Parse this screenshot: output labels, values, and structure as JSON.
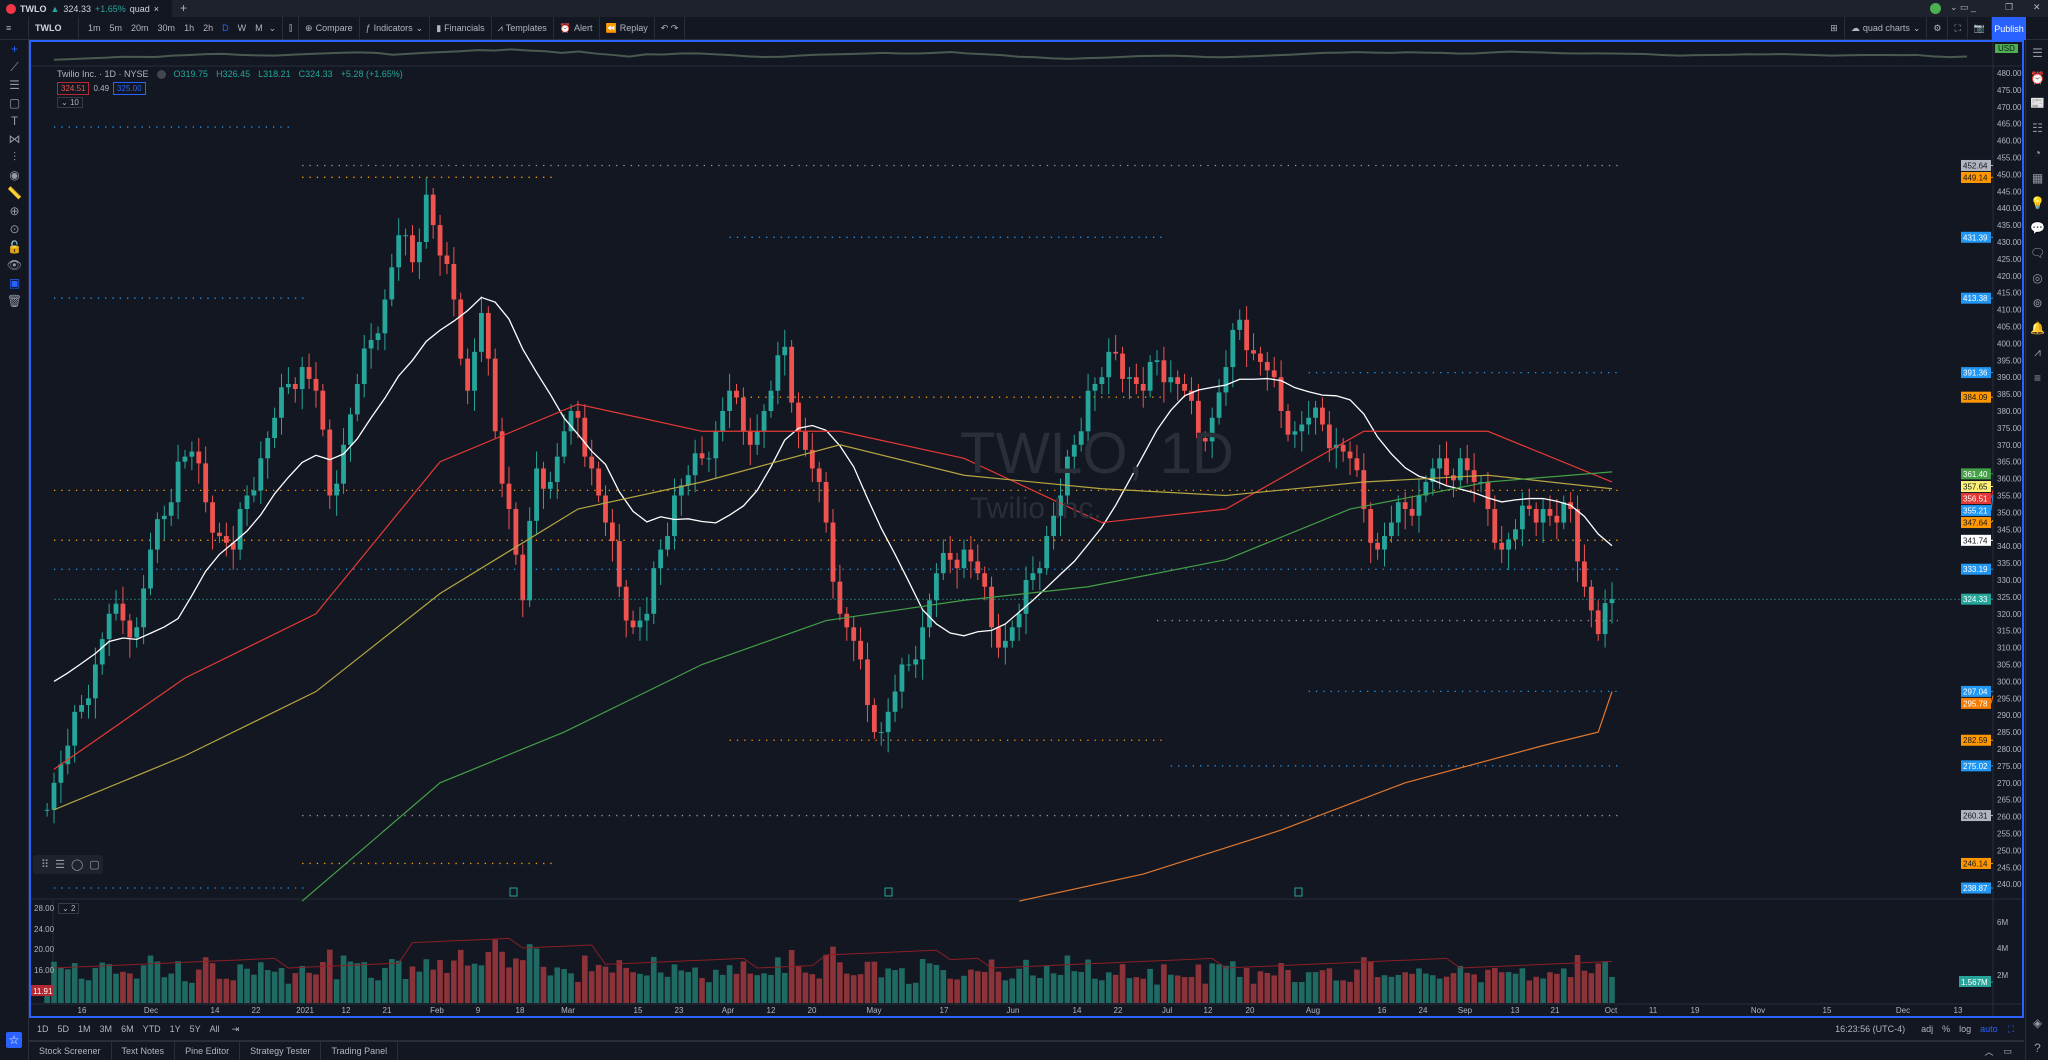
{
  "tab": {
    "symbol": "TWLO",
    "arrow": "▲",
    "price": "324.33",
    "change": "+1.65%",
    "layout": "quad",
    "close": "×",
    "new": "+"
  },
  "toolbar": {
    "symbol": "TWLO",
    "intervals": [
      "1m",
      "5m",
      "20m",
      "30m",
      "1h",
      "2h",
      "D",
      "W",
      "M"
    ],
    "active_interval": "D",
    "compare": "Compare",
    "indicators": "Indicators",
    "financials": "Financials",
    "templates": "Templates",
    "alert": "Alert",
    "replay": "Replay",
    "layout_name": "quad charts",
    "publish": "Publish"
  },
  "legend": {
    "title": "Twilio Inc. · 1D · NYSE",
    "open": "O319.75",
    "high": "H326.45",
    "low": "L318.21",
    "close": "C324.33",
    "change": "+5.28 (+1.65%)",
    "bid": "324.51",
    "spread": "0.49",
    "ask": "325.00",
    "collapsed_count": "10",
    "volume_collapsed": "2"
  },
  "watermark": {
    "symbol": "TWLO, 1D",
    "name": "Twilio Inc."
  },
  "currency": "USD",
  "colors": {
    "up": "#26a69a",
    "down": "#ef5350",
    "ma_white": "#ffffff",
    "ma_red": "#e53935",
    "ma_yellow": "#b5a642",
    "ma_green": "#43a047",
    "ma_orange": "#e0782f",
    "level_blue": "#2196f3",
    "level_orange": "#ff9800",
    "accent": "#2962ff"
  },
  "chart_data": {
    "type": "candlestick",
    "ylim": [
      236,
      484
    ],
    "price_ticks": [
      480,
      475,
      470,
      465,
      460,
      455,
      450,
      445,
      440,
      435,
      430,
      425,
      420,
      415,
      410,
      405,
      400,
      395,
      390,
      385,
      380,
      375,
      370,
      365,
      360,
      355,
      350,
      345,
      340,
      335,
      330,
      325,
      320,
      315,
      310,
      305,
      300,
      295,
      290,
      285,
      280,
      275,
      270,
      265,
      260,
      255,
      250,
      245,
      240
    ],
    "closes": [
      270,
      281,
      293,
      305,
      320,
      318,
      316,
      339,
      349,
      365,
      368,
      353,
      343,
      339,
      355,
      366,
      378,
      388,
      393,
      386,
      355,
      370,
      388,
      401,
      413,
      432,
      424,
      444,
      426,
      413,
      386,
      409,
      374,
      351,
      324,
      363,
      359,
      374,
      378,
      363,
      347,
      328,
      316,
      320,
      339,
      355,
      361,
      366,
      374,
      386,
      374,
      374,
      386,
      399,
      374,
      363,
      347,
      320,
      312,
      293,
      285,
      297,
      305,
      316,
      332,
      336,
      339,
      332,
      316,
      312,
      320,
      332,
      343,
      355,
      370,
      386,
      390,
      397,
      390,
      386,
      395,
      390,
      386,
      372,
      378,
      393,
      407,
      397,
      392,
      380,
      374,
      378,
      376,
      370,
      366,
      351,
      339,
      347,
      351,
      355,
      363,
      361,
      366,
      359,
      351,
      339,
      345,
      351,
      351,
      347,
      351,
      328,
      314,
      324.33
    ],
    "moving_averages": [
      {
        "color": "ma_red",
        "points": [
          [
            0,
            274
          ],
          [
            9.5,
            301
          ],
          [
            19,
            320
          ],
          [
            28,
            365
          ],
          [
            38,
            382
          ],
          [
            47,
            374
          ],
          [
            57,
            374
          ],
          [
            66,
            366
          ],
          [
            76,
            347
          ],
          [
            85,
            351
          ],
          [
            95,
            374
          ],
          [
            104,
            374
          ],
          [
            113,
            359
          ]
        ]
      },
      {
        "color": "ma_yellow",
        "points": [
          [
            0,
            262
          ],
          [
            9.5,
            278
          ],
          [
            19,
            297
          ],
          [
            28,
            326
          ],
          [
            38,
            351
          ],
          [
            47,
            359
          ],
          [
            57,
            370
          ],
          [
            66,
            361
          ],
          [
            76,
            357
          ],
          [
            85,
            355
          ],
          [
            95,
            359
          ],
          [
            104,
            361
          ],
          [
            113,
            357
          ]
        ]
      },
      {
        "color": "ma_green",
        "points": [
          [
            18,
            235
          ],
          [
            28,
            270
          ],
          [
            37,
            285
          ],
          [
            47,
            305
          ],
          [
            56,
            318
          ],
          [
            66,
            324
          ],
          [
            75,
            328
          ],
          [
            85,
            336
          ],
          [
            94,
            351
          ],
          [
            104,
            359
          ],
          [
            113,
            362
          ]
        ]
      },
      {
        "color": "ma_orange",
        "points": [
          [
            70,
            235
          ],
          [
            79,
            243
          ],
          [
            89,
            256
          ],
          [
            98,
            270
          ],
          [
            108,
            281
          ],
          [
            112,
            285
          ],
          [
            113,
            297
          ]
        ]
      }
    ],
    "levels": [
      {
        "price": 464,
        "from": 0,
        "to": 17,
        "color": "level_blue"
      },
      {
        "price": 452.64,
        "from": 18,
        "to": 113,
        "color": "#9598a1"
      },
      {
        "price": 449.14,
        "from": 18,
        "to": 36,
        "color": "level_orange"
      },
      {
        "price": 431.39,
        "from": 49,
        "to": 80,
        "color": "level_blue"
      },
      {
        "price": 413.38,
        "from": 0,
        "to": 18,
        "color": "level_blue"
      },
      {
        "price": 391.36,
        "from": 91,
        "to": 113,
        "color": "level_blue"
      },
      {
        "price": 384.09,
        "from": 50,
        "to": 80,
        "color": "level_orange"
      },
      {
        "price": 356.51,
        "from": 0,
        "to": 113,
        "color": "level_orange"
      },
      {
        "price": 341.74,
        "from": 0,
        "to": 113,
        "color": "level_orange"
      },
      {
        "price": 333.19,
        "from": 0,
        "to": 113,
        "color": "level_blue"
      },
      {
        "price": 318,
        "from": 80,
        "to": 113,
        "color": "#9598a1"
      },
      {
        "price": 297.04,
        "from": 91,
        "to": 113,
        "color": "level_blue"
      },
      {
        "price": 282.59,
        "from": 49,
        "to": 80,
        "color": "level_orange"
      },
      {
        "price": 275.02,
        "from": 81,
        "to": 113,
        "color": "level_blue"
      },
      {
        "price": 260.31,
        "from": 18,
        "to": 113,
        "color": "#9598a1"
      },
      {
        "price": 246.14,
        "from": 18,
        "to": 36,
        "color": "level_orange"
      },
      {
        "price": 238.87,
        "from": 0,
        "to": 18,
        "color": "level_blue"
      }
    ],
    "price_badges": [
      {
        "value": "452.64",
        "bg": "#b2b5be",
        "fg": "#131722"
      },
      {
        "value": "449.14",
        "bg": "#ff9800",
        "fg": "#131722"
      },
      {
        "value": "431.39",
        "bg": "#2196f3",
        "fg": "#fff"
      },
      {
        "value": "413.38",
        "bg": "#2196f3",
        "fg": "#fff"
      },
      {
        "value": "391.36",
        "bg": "#2196f3",
        "fg": "#fff"
      },
      {
        "value": "384.09",
        "bg": "#ff9800",
        "fg": "#131722"
      },
      {
        "value": "361.40",
        "bg": "#43a047",
        "fg": "#fff"
      },
      {
        "value": "357.65",
        "bg": "#fff176",
        "fg": "#131722"
      },
      {
        "value": "356.51",
        "bg": "#e53935",
        "fg": "#fff"
      },
      {
        "value": "355.21",
        "bg": "#2196f3",
        "fg": "#fff"
      },
      {
        "value": "347.64",
        "bg": "#ff9800",
        "fg": "#131722"
      },
      {
        "value": "341.74",
        "bg": "#ffffff",
        "fg": "#131722"
      },
      {
        "value": "333.19",
        "bg": "#2196f3",
        "fg": "#fff"
      },
      {
        "value": "324.33",
        "bg": "#26a69a",
        "fg": "#fff"
      },
      {
        "value": "297.04",
        "bg": "#2196f3",
        "fg": "#fff"
      },
      {
        "value": "295.78",
        "bg": "#f57c00",
        "fg": "#fff"
      },
      {
        "value": "282.59",
        "bg": "#ff9800",
        "fg": "#131722"
      },
      {
        "value": "275.02",
        "bg": "#2196f3",
        "fg": "#fff"
      },
      {
        "value": "260.31",
        "bg": "#b2b5be",
        "fg": "#131722"
      },
      {
        "value": "246.14",
        "bg": "#ff9800",
        "fg": "#131722"
      },
      {
        "value": "238.87",
        "bg": "#2196f3",
        "fg": "#fff"
      }
    ],
    "x_labels": [
      "16",
      "Dec",
      "14",
      "22",
      "2021",
      "12",
      "21",
      "Feb",
      "9",
      "18",
      "Mar",
      "15",
      "23",
      "Apr",
      "12",
      "20",
      "May",
      "17",
      "Jun",
      "14",
      "22",
      "Jul",
      "12",
      "20",
      "Aug",
      "16",
      "24",
      "Sep",
      "13",
      "21",
      "Oct",
      "11",
      "19",
      "Nov",
      "15",
      "Dec",
      "13"
    ],
    "volume": {
      "right_ticks": [
        "6M",
        "4M",
        "2M"
      ],
      "last": "1.567M",
      "left_ticks": [
        "28.00",
        "24.00",
        "20.00",
        "16.00"
      ],
      "left_last": "11.91"
    }
  },
  "bottom": {
    "ranges": [
      "1D",
      "5D",
      "1M",
      "3M",
      "6M",
      "YTD",
      "1Y",
      "5Y",
      "All"
    ],
    "clock": "16:23:56 (UTC-4)",
    "adj": "adj",
    "percent": "%",
    "log": "log",
    "auto": "auto"
  },
  "panels": [
    "Stock Screener",
    "Text Notes",
    "Pine Editor",
    "Strategy Tester",
    "Trading Panel"
  ]
}
